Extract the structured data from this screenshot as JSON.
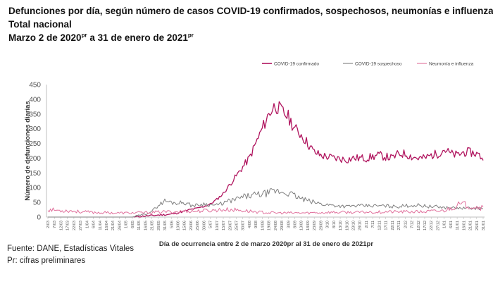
{
  "title": {
    "line1": "Defunciones por día, según número de casos COVID-19 confirmados, sospechosos, neumonías e influenzas",
    "line2": "Total nacional",
    "line3_a": "Marzo 2 de 2020",
    "line3_sup1": "pr",
    "line3_b": " a 31 de enero de 2021",
    "line3_sup2": "pr"
  },
  "footer": {
    "source": "Fuente: DANE, Estadísticas Vitales",
    "note": "Pr: cifras preliminares"
  },
  "colors": {
    "confirmado": "#b0145e",
    "sospechoso": "#7f7f7f",
    "neumonia": "#e0709c",
    "axis": "#bfbfbf",
    "grid": "#e6e6e6"
  },
  "chart_data": {
    "type": "line",
    "ylabel": "Número de defunciones diarias",
    "xlabel": "Día de ocurrencia entre 2 de marzo 2020pr al 31 de enero de 2021pr",
    "ylim": [
      0,
      450
    ],
    "yticks": [
      0,
      50,
      100,
      150,
      200,
      250,
      300,
      350,
      400,
      450
    ],
    "grid": false,
    "legend_position": "top-right",
    "x_tick_labels": [
      "2/03",
      "7/03",
      "12/03",
      "17/03",
      "22/03",
      "27/03",
      "1/04",
      "6/04",
      "11/04",
      "16/04",
      "21/04",
      "26/04",
      "1/05",
      "6/05",
      "11/05",
      "16/05",
      "21/05",
      "26/05",
      "31/05",
      "5/06",
      "10/06",
      "15/06",
      "20/06",
      "25/06",
      "30/06",
      "5/07",
      "10/07",
      "15/07",
      "20/07",
      "25/07",
      "30/07",
      "4/08",
      "9/08",
      "14/08",
      "19/08",
      "24/08",
      "29/08",
      "3/09",
      "8/09",
      "13/09",
      "18/09",
      "23/09",
      "28/09",
      "3/10",
      "8/10",
      "13/10",
      "18/10",
      "23/10",
      "28/10",
      "2/11",
      "7/11",
      "12/11",
      "17/11",
      "22/11",
      "27/11",
      "2/12",
      "7/12",
      "12/12",
      "17/12",
      "22/12",
      "27/12",
      "1/01",
      "6/01",
      "11/01",
      "16/01",
      "21/01",
      "26/01",
      "31/01"
    ],
    "series": [
      {
        "name": "COVID-19 confirmado",
        "color": "#b0145e",
        "values": [
          0,
          0,
          0,
          0,
          0,
          0,
          0,
          0,
          0,
          0,
          0,
          0,
          0,
          0,
          2,
          4,
          5,
          7,
          8,
          10,
          14,
          20,
          26,
          30,
          36,
          44,
          60,
          80,
          110,
          140,
          170,
          200,
          250,
          300,
          350,
          380,
          360,
          340,
          300,
          280,
          250,
          220,
          210,
          205,
          200,
          198,
          195,
          200,
          200,
          200,
          205,
          210,
          205,
          200,
          215,
          215,
          205,
          200,
          200,
          210,
          215,
          230,
          215,
          210,
          220,
          220,
          215,
          200
        ]
      },
      {
        "name": "COVID-19 sospechoso",
        "color": "#7f7f7f",
        "values": [
          0,
          0,
          0,
          0,
          0,
          0,
          0,
          0,
          0,
          0,
          0,
          0,
          0,
          0,
          5,
          10,
          20,
          40,
          55,
          50,
          48,
          50,
          40,
          40,
          45,
          42,
          40,
          48,
          55,
          60,
          68,
          72,
          75,
          78,
          82,
          88,
          85,
          82,
          72,
          62,
          55,
          50,
          45,
          42,
          40,
          38,
          36,
          38,
          38,
          38,
          38,
          38,
          38,
          36,
          36,
          38,
          40,
          40,
          38,
          35,
          35,
          32,
          32,
          30,
          30,
          30,
          30,
          28
        ]
      },
      {
        "name": "Neumonía e influenza",
        "color": "#e0709c",
        "values": [
          25,
          24,
          22,
          22,
          20,
          18,
          17,
          16,
          15,
          15,
          14,
          14,
          14,
          14,
          15,
          15,
          16,
          17,
          18,
          18,
          18,
          20,
          20,
          20,
          22,
          22,
          24,
          25,
          25,
          24,
          22,
          20,
          18,
          16,
          15,
          14,
          14,
          14,
          14,
          14,
          14,
          15,
          15,
          16,
          16,
          16,
          16,
          16,
          16,
          17,
          17,
          17,
          18,
          18,
          18,
          18,
          18,
          18,
          18,
          20,
          20,
          22,
          30,
          40,
          42,
          38,
          35,
          30
        ]
      }
    ]
  }
}
